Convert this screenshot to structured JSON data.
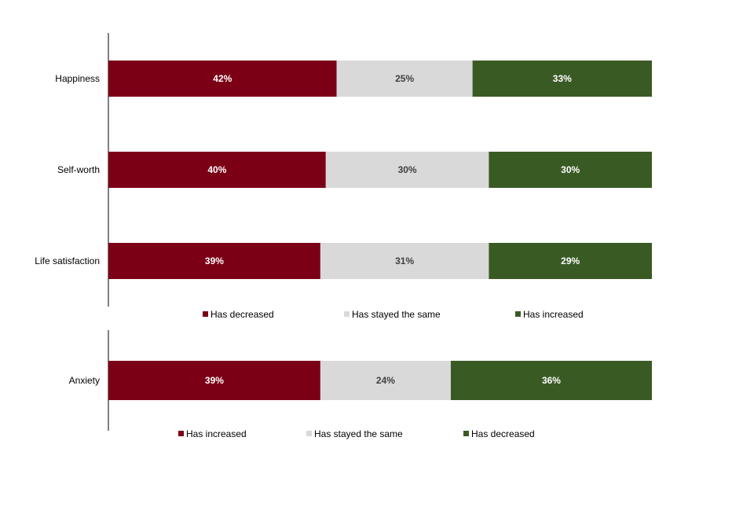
{
  "chart_data": [
    {
      "type": "bar",
      "orientation": "horizontal",
      "stacked": true,
      "categories": [
        "Happiness",
        "Self-worth",
        "Life satisfaction"
      ],
      "series": [
        {
          "name": "Has decreased",
          "values": [
            42,
            40,
            39
          ],
          "color": "#7B0016",
          "label_color": "#ffffff"
        },
        {
          "name": "Has stayed the same",
          "values": [
            25,
            30,
            31
          ],
          "color": "#D9D9D9",
          "label_color": "#404040"
        },
        {
          "name": "Has increased",
          "values": [
            33,
            30,
            29
          ],
          "color": "#3A5A24",
          "label_color": "#ffffff"
        }
      ],
      "xlim": [
        0,
        100
      ],
      "grid": false,
      "legend_position": "bottom"
    },
    {
      "type": "bar",
      "orientation": "horizontal",
      "stacked": true,
      "categories": [
        "Anxiety"
      ],
      "series": [
        {
          "name": "Has increased",
          "values": [
            39
          ],
          "color": "#7B0016",
          "label_color": "#ffffff"
        },
        {
          "name": "Has stayed the same",
          "values": [
            24
          ],
          "color": "#D9D9D9",
          "label_color": "#404040"
        },
        {
          "name": "Has decreased",
          "values": [
            36
          ],
          "color": "#3A5A24",
          "label_color": "#ffffff"
        }
      ],
      "xlim": [
        0,
        100
      ],
      "grid": false,
      "legend_position": "bottom"
    }
  ]
}
